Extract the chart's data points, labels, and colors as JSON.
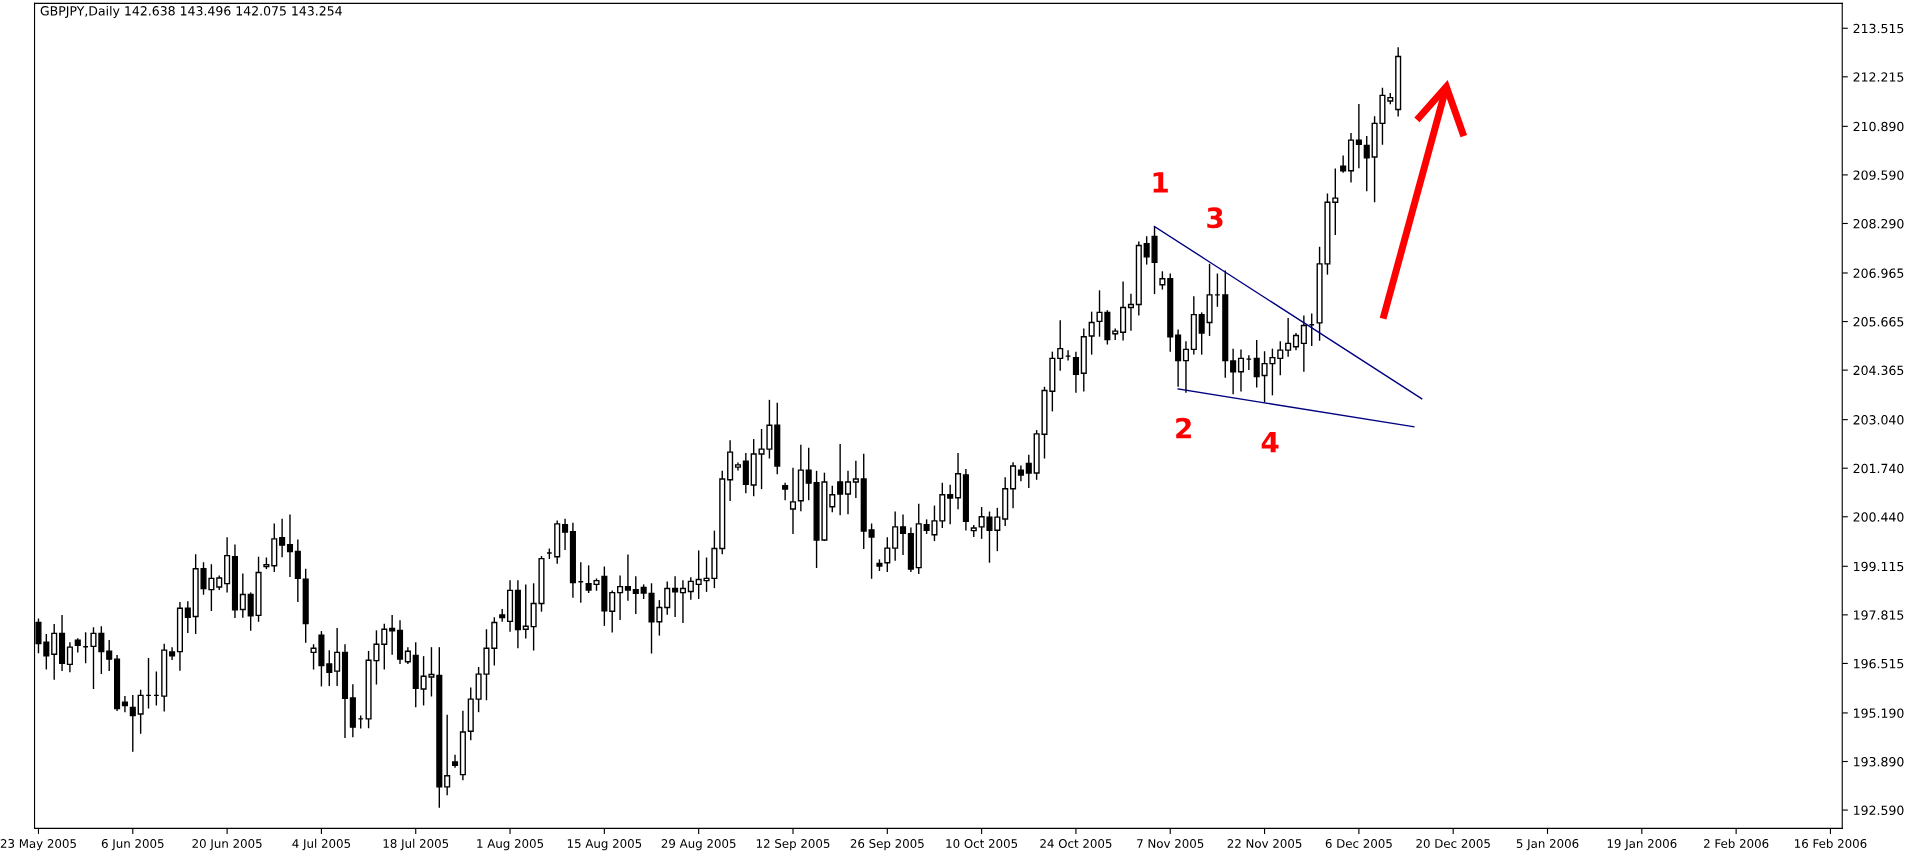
{
  "chart_data": {
    "type": "candlestick",
    "title": "GBPJPY,Daily 142.638 143.496 142.075 143.254",
    "categories": [
      "23 May 2005",
      null,
      null,
      null,
      null,
      null,
      null,
      null,
      null,
      null,
      null,
      null,
      "6 Jun 2005",
      null,
      null,
      null,
      null,
      null,
      null,
      null,
      null,
      null,
      null,
      null,
      "20 Jun 2005",
      null,
      null,
      null,
      null,
      null,
      null,
      null,
      null,
      null,
      null,
      null,
      "4 Jul 2005",
      null,
      null,
      null,
      null,
      null,
      null,
      null,
      null,
      null,
      null,
      null,
      "18 Jul 2005",
      null,
      null,
      null,
      null,
      null,
      null,
      null,
      null,
      null,
      null,
      null,
      "1 Aug 2005",
      null,
      null,
      null,
      null,
      null,
      null,
      null,
      null,
      null,
      null,
      null,
      "15 Aug 2005",
      null,
      null,
      null,
      null,
      null,
      null,
      null,
      null,
      null,
      null,
      null,
      "29 Aug 2005",
      null,
      null,
      null,
      null,
      null,
      null,
      null,
      null,
      null,
      null,
      null,
      "12 Sep 2005",
      null,
      null,
      null,
      null,
      null,
      null,
      null,
      null,
      null,
      null,
      null,
      "26 Sep 2005",
      null,
      null,
      null,
      null,
      null,
      null,
      null,
      null,
      null,
      null,
      null,
      "10 Oct 2005",
      null,
      null,
      null,
      null,
      null,
      null,
      null,
      null,
      null,
      null,
      null,
      "24 Oct 2005",
      null,
      null,
      null,
      null,
      null,
      null,
      null,
      null,
      null,
      null,
      null,
      "7 Nov 2005",
      null,
      null,
      null,
      null,
      null,
      null,
      null,
      null,
      null,
      null,
      null,
      "22 Nov 2005",
      null,
      null,
      null,
      null,
      null,
      null,
      null,
      null,
      null,
      null,
      null,
      "6 Dec 2005",
      null,
      null,
      null,
      null,
      null,
      null,
      null,
      null,
      null,
      null,
      null,
      "20 Dec 2005",
      null,
      null,
      null,
      null,
      null,
      null,
      null,
      null,
      null,
      null,
      null,
      "5 Jan 2006",
      null,
      null,
      null,
      null,
      null,
      null,
      null,
      null,
      null,
      null,
      null,
      "19 Jan 2006",
      null,
      null,
      null,
      null,
      null,
      null,
      null,
      null,
      null,
      null,
      null,
      "2 Feb 2006",
      null,
      null,
      null,
      null,
      null,
      null,
      null,
      null,
      null,
      null,
      null,
      "16 Feb 2006",
      null
    ],
    "ohlc": [
      [
        197.61,
        197.72,
        196.79,
        197.05
      ],
      [
        197.08,
        197.3,
        196.35,
        196.72
      ],
      [
        196.76,
        197.57,
        196.08,
        197.32
      ],
      [
        197.32,
        197.81,
        196.31,
        196.52
      ],
      [
        196.49,
        197.08,
        196.28,
        196.95
      ],
      [
        197.14,
        197.19,
        196.81,
        197.0
      ],
      [
        196.96,
        197.35,
        196.52,
        196.96
      ],
      [
        196.97,
        197.48,
        195.83,
        197.32
      ],
      [
        197.32,
        197.51,
        196.23,
        196.83
      ],
      [
        196.84,
        197.14,
        196.31,
        196.63
      ],
      [
        196.63,
        196.74,
        195.24,
        195.31
      ],
      [
        195.48,
        195.64,
        195.21,
        195.39
      ],
      [
        195.34,
        195.67,
        194.15,
        195.12
      ],
      [
        195.16,
        195.81,
        194.63,
        195.66
      ],
      [
        195.66,
        196.66,
        195.31,
        195.66
      ],
      [
        195.66,
        196.3,
        195.39,
        195.66
      ],
      [
        195.64,
        197.04,
        195.23,
        196.87
      ],
      [
        196.82,
        196.95,
        196.61,
        196.72
      ],
      [
        196.83,
        198.16,
        196.32,
        197.99
      ],
      [
        197.99,
        198.18,
        197.33,
        197.75
      ],
      [
        197.77,
        199.44,
        197.3,
        199.05
      ],
      [
        199.05,
        199.22,
        198.35,
        198.52
      ],
      [
        198.49,
        199.17,
        197.92,
        198.79
      ],
      [
        198.56,
        198.87,
        198.48,
        198.8
      ],
      [
        198.65,
        199.89,
        198.41,
        199.4
      ],
      [
        199.37,
        199.7,
        197.73,
        197.95
      ],
      [
        197.96,
        198.92,
        197.74,
        198.36
      ],
      [
        198.36,
        198.41,
        197.39,
        197.79
      ],
      [
        197.8,
        199.37,
        197.63,
        198.95
      ],
      [
        199.11,
        199.35,
        199.04,
        199.16
      ],
      [
        199.13,
        200.26,
        198.96,
        199.85
      ],
      [
        199.88,
        200.39,
        199.36,
        199.68
      ],
      [
        199.69,
        200.5,
        198.83,
        199.51
      ],
      [
        199.51,
        199.83,
        198.16,
        198.79
      ],
      [
        198.77,
        199.05,
        197.07,
        197.58
      ],
      [
        196.81,
        197.03,
        196.35,
        196.92
      ],
      [
        197.27,
        197.38,
        195.9,
        196.46
      ],
      [
        196.5,
        196.87,
        195.91,
        196.28
      ],
      [
        196.31,
        197.46,
        195.91,
        196.81
      ],
      [
        196.81,
        197.03,
        194.52,
        195.58
      ],
      [
        195.59,
        195.96,
        194.54,
        194.81
      ],
      [
        195.03,
        195.12,
        194.77,
        195.03
      ],
      [
        195.03,
        196.85,
        194.78,
        196.6
      ],
      [
        196.59,
        197.4,
        195.95,
        197.03
      ],
      [
        197.03,
        197.58,
        196.35,
        197.43
      ],
      [
        197.45,
        197.81,
        196.75,
        197.39
      ],
      [
        197.4,
        197.67,
        196.5,
        196.63
      ],
      [
        196.56,
        196.95,
        196.5,
        196.84
      ],
      [
        196.73,
        197.08,
        195.34,
        195.85
      ],
      [
        195.83,
        196.71,
        195.39,
        196.17
      ],
      [
        196.15,
        196.95,
        195.63,
        196.22
      ],
      [
        196.19,
        196.95,
        192.65,
        193.21
      ],
      [
        193.21,
        195.14,
        192.99,
        193.51
      ],
      [
        193.88,
        194.07,
        193.72,
        193.79
      ],
      [
        193.54,
        195.25,
        193.39,
        194.68
      ],
      [
        194.7,
        195.87,
        194.46,
        195.56
      ],
      [
        195.56,
        196.42,
        195.21,
        196.23
      ],
      [
        196.23,
        197.43,
        195.53,
        196.92
      ],
      [
        196.92,
        197.75,
        196.46,
        197.61
      ],
      [
        197.81,
        197.97,
        197.63,
        197.74
      ],
      [
        197.64,
        198.74,
        197.36,
        198.47
      ],
      [
        198.47,
        198.74,
        196.92,
        197.42
      ],
      [
        197.43,
        198.63,
        197.18,
        197.51
      ],
      [
        197.5,
        198.66,
        196.86,
        198.12
      ],
      [
        198.12,
        199.39,
        197.9,
        199.32
      ],
      [
        199.47,
        199.59,
        199.31,
        199.47
      ],
      [
        199.37,
        200.34,
        199.18,
        200.25
      ],
      [
        200.23,
        200.39,
        199.55,
        200.03
      ],
      [
        200.04,
        200.28,
        198.27,
        198.68
      ],
      [
        198.7,
        199.22,
        198.14,
        198.7
      ],
      [
        198.65,
        199.14,
        198.4,
        198.48
      ],
      [
        198.63,
        198.79,
        198.46,
        198.73
      ],
      [
        198.84,
        199.11,
        197.52,
        197.92
      ],
      [
        197.91,
        198.47,
        197.34,
        198.41
      ],
      [
        198.41,
        198.87,
        197.68,
        198.57
      ],
      [
        198.57,
        199.43,
        198.19,
        198.48
      ],
      [
        198.49,
        198.85,
        197.84,
        198.39
      ],
      [
        198.55,
        198.63,
        198.24,
        198.4
      ],
      [
        198.39,
        198.66,
        196.78,
        197.63
      ],
      [
        197.63,
        198.21,
        197.26,
        198.01
      ],
      [
        198.01,
        198.71,
        197.82,
        198.52
      ],
      [
        198.52,
        198.85,
        197.76,
        198.43
      ],
      [
        198.41,
        198.74,
        197.6,
        198.52
      ],
      [
        198.44,
        198.82,
        198.22,
        198.71
      ],
      [
        198.63,
        199.54,
        198.24,
        198.76
      ],
      [
        198.73,
        199.35,
        198.43,
        198.79
      ],
      [
        198.79,
        200.07,
        198.53,
        199.59
      ],
      [
        199.59,
        201.67,
        199.44,
        201.45
      ],
      [
        201.43,
        202.49,
        200.86,
        202.17
      ],
      [
        201.77,
        201.89,
        201.68,
        201.83
      ],
      [
        201.93,
        202.15,
        201.07,
        201.31
      ],
      [
        201.29,
        202.52,
        200.99,
        202.12
      ],
      [
        202.12,
        202.79,
        201.18,
        202.25
      ],
      [
        202.25,
        203.57,
        202.0,
        202.89
      ],
      [
        202.89,
        203.49,
        201.58,
        201.8
      ],
      [
        201.27,
        201.35,
        200.88,
        201.18
      ],
      [
        200.65,
        201.75,
        199.98,
        200.84
      ],
      [
        200.87,
        202.37,
        200.59,
        201.69
      ],
      [
        201.69,
        202.29,
        200.88,
        201.34
      ],
      [
        201.35,
        201.67,
        199.07,
        199.82
      ],
      [
        199.82,
        201.62,
        199.79,
        201.37
      ],
      [
        200.71,
        201.27,
        200.56,
        201.03
      ],
      [
        201.37,
        202.39,
        200.48,
        201.05
      ],
      [
        201.05,
        201.67,
        200.51,
        201.37
      ],
      [
        201.37,
        201.94,
        200.94,
        201.45
      ],
      [
        201.45,
        202.13,
        199.58,
        200.06
      ],
      [
        200.09,
        200.26,
        198.78,
        199.9
      ],
      [
        199.19,
        199.3,
        198.99,
        199.12
      ],
      [
        199.21,
        199.89,
        198.96,
        199.6
      ],
      [
        199.6,
        200.58,
        199.26,
        200.17
      ],
      [
        200.17,
        200.5,
        199.42,
        200.0
      ],
      [
        199.99,
        200.15,
        198.96,
        199.04
      ],
      [
        199.08,
        200.79,
        198.91,
        200.25
      ],
      [
        200.23,
        200.37,
        199.98,
        200.08
      ],
      [
        199.96,
        200.74,
        199.79,
        200.33
      ],
      [
        200.33,
        201.35,
        200.14,
        201.03
      ],
      [
        201.03,
        201.3,
        200.24,
        200.94
      ],
      [
        200.95,
        202.15,
        200.64,
        201.59
      ],
      [
        201.56,
        201.72,
        200.07,
        200.32
      ],
      [
        200.07,
        200.22,
        199.9,
        200.14
      ],
      [
        200.17,
        200.7,
        199.85,
        200.44
      ],
      [
        200.43,
        200.58,
        199.21,
        200.08
      ],
      [
        200.08,
        200.68,
        199.52,
        200.43
      ],
      [
        200.38,
        201.5,
        200.19,
        201.19
      ],
      [
        201.19,
        201.9,
        200.67,
        201.8
      ],
      [
        201.69,
        201.81,
        201.39,
        201.56
      ],
      [
        201.87,
        202.1,
        201.21,
        201.61
      ],
      [
        201.61,
        202.76,
        201.43,
        202.66
      ],
      [
        202.65,
        203.92,
        202.0,
        203.82
      ],
      [
        203.8,
        204.86,
        203.26,
        204.68
      ],
      [
        204.68,
        205.7,
        204.35,
        204.94
      ],
      [
        204.74,
        204.9,
        204.62,
        204.74
      ],
      [
        204.7,
        204.86,
        203.76,
        204.25
      ],
      [
        204.28,
        205.48,
        203.79,
        205.26
      ],
      [
        205.28,
        205.93,
        204.78,
        205.64
      ],
      [
        205.67,
        206.5,
        205.26,
        205.91
      ],
      [
        205.91,
        205.97,
        205.05,
        205.18
      ],
      [
        205.34,
        205.48,
        205.17,
        205.41
      ],
      [
        205.38,
        206.74,
        205.16,
        206.04
      ],
      [
        206.04,
        206.41,
        205.42,
        206.12
      ],
      [
        206.12,
        207.81,
        205.83,
        207.7
      ],
      [
        207.75,
        207.95,
        207.19,
        207.4
      ],
      [
        207.94,
        208.21,
        206.4,
        207.25
      ],
      [
        206.65,
        207.01,
        206.52,
        206.81
      ],
      [
        206.81,
        206.95,
        204.86,
        205.26
      ],
      [
        205.3,
        205.45,
        203.92,
        204.62
      ],
      [
        204.62,
        205.14,
        203.76,
        204.92
      ],
      [
        204.92,
        206.34,
        204.78,
        205.85
      ],
      [
        205.85,
        205.91,
        204.78,
        205.36
      ],
      [
        205.64,
        207.21,
        205.28,
        206.38
      ],
      [
        206.38,
        206.95,
        206.06,
        206.38
      ],
      [
        206.38,
        207.03,
        204.16,
        204.62
      ],
      [
        204.61,
        204.94,
        203.72,
        204.32
      ],
      [
        204.32,
        204.92,
        203.79,
        204.68
      ],
      [
        204.66,
        204.76,
        204.37,
        204.66
      ],
      [
        204.68,
        205.17,
        203.9,
        204.19
      ],
      [
        204.22,
        204.87,
        203.5,
        204.54
      ],
      [
        204.54,
        204.94,
        203.69,
        204.7
      ],
      [
        204.68,
        205.14,
        204.23,
        204.9
      ],
      [
        204.9,
        205.76,
        204.72,
        205.08
      ],
      [
        204.99,
        205.36,
        204.9,
        205.29
      ],
      [
        205.08,
        205.83,
        204.32,
        205.56
      ],
      [
        205.58,
        205.88,
        205.01,
        205.58
      ],
      [
        205.63,
        207.67,
        205.15,
        207.21
      ],
      [
        207.21,
        209.09,
        206.92,
        208.86
      ],
      [
        208.86,
        209.76,
        207.98,
        208.97
      ],
      [
        209.82,
        210.11,
        209.65,
        209.7
      ],
      [
        209.7,
        210.71,
        209.39,
        210.52
      ],
      [
        210.52,
        211.49,
        209.77,
        210.41
      ],
      [
        210.38,
        210.63,
        209.15,
        210.05
      ],
      [
        210.07,
        211.16,
        208.86,
        210.97
      ],
      [
        210.97,
        211.92,
        210.4,
        211.72
      ],
      [
        211.57,
        211.78,
        211.48,
        211.66
      ],
      [
        211.34,
        213.01,
        211.15,
        212.76
      ],
      null,
      null,
      null,
      null,
      null,
      null,
      null,
      null,
      null,
      null,
      null,
      null,
      null,
      null,
      null,
      null,
      null,
      null,
      null,
      null,
      null,
      null,
      null,
      null,
      null,
      null,
      null,
      null,
      null,
      null,
      null,
      null,
      null,
      null,
      null,
      null,
      null,
      null,
      null,
      null,
      null,
      null,
      null,
      null,
      null,
      null,
      null,
      null,
      null,
      null,
      null,
      null,
      null,
      null,
      null,
      null
    ],
    "series": [
      {
        "type": "line",
        "color": "#000080",
        "values": [
          null,
          null,
          null,
          null,
          null,
          null,
          null,
          null,
          null,
          null,
          null,
          null,
          null,
          null,
          null,
          null,
          null,
          null,
          null,
          null,
          null,
          null,
          null,
          null,
          null,
          null,
          null,
          null,
          null,
          null,
          null,
          null,
          null,
          null,
          null,
          null,
          null,
          null,
          null,
          null,
          null,
          null,
          null,
          null,
          null,
          null,
          null,
          null,
          null,
          null,
          null,
          null,
          null,
          null,
          null,
          null,
          null,
          null,
          null,
          null,
          null,
          null,
          null,
          null,
          null,
          null,
          null,
          null,
          null,
          null,
          null,
          null,
          null,
          null,
          null,
          null,
          null,
          null,
          null,
          null,
          null,
          null,
          null,
          null,
          null,
          null,
          null,
          null,
          null,
          null,
          null,
          null,
          null,
          null,
          null,
          null,
          null,
          null,
          null,
          null,
          null,
          null,
          null,
          null,
          null,
          null,
          null,
          null,
          null,
          null,
          null,
          null,
          null,
          null,
          null,
          null,
          null,
          null,
          null,
          null,
          null,
          null,
          null,
          null,
          null,
          null,
          null,
          null,
          null,
          null,
          null,
          null,
          null,
          null,
          null,
          null,
          null,
          null,
          null,
          null,
          null,
          null,
          208.21,
          null,
          null,
          null,
          null,
          null,
          null,
          207.26,
          null,
          null,
          null,
          null,
          null,
          null,
          null,
          null,
          null,
          null,
          null,
          null,
          null,
          null,
          null,
          null,
          null,
          null,
          null,
          null,
          null,
          null,
          null,
          null,
          null,
          null,
          203.6,
          null,
          null,
          null,
          null,
          null,
          null,
          null,
          null,
          null,
          null,
          null,
          null,
          null,
          null,
          null,
          null,
          null,
          null,
          null,
          null,
          null,
          null,
          null,
          null,
          null,
          null,
          null,
          null,
          null,
          null,
          null,
          null,
          null,
          null,
          null,
          null,
          null,
          null,
          null,
          null,
          null,
          null,
          null,
          null,
          null,
          null,
          null,
          null,
          null,
          null,
          null,
          null,
          null
        ]
      },
      {
        "type": "line",
        "color": "#000080",
        "values": [
          null,
          null,
          null,
          null,
          null,
          null,
          null,
          null,
          null,
          null,
          null,
          null,
          null,
          null,
          null,
          null,
          null,
          null,
          null,
          null,
          null,
          null,
          null,
          null,
          null,
          null,
          null,
          null,
          null,
          null,
          null,
          null,
          null,
          null,
          null,
          null,
          null,
          null,
          null,
          null,
          null,
          null,
          null,
          null,
          null,
          null,
          null,
          null,
          null,
          null,
          null,
          null,
          null,
          null,
          null,
          null,
          null,
          null,
          null,
          null,
          null,
          null,
          null,
          null,
          null,
          null,
          null,
          null,
          null,
          null,
          null,
          null,
          null,
          null,
          null,
          null,
          null,
          null,
          null,
          null,
          null,
          null,
          null,
          null,
          null,
          null,
          null,
          null,
          null,
          null,
          null,
          null,
          null,
          null,
          null,
          null,
          null,
          null,
          null,
          null,
          null,
          null,
          null,
          null,
          null,
          null,
          null,
          null,
          null,
          null,
          null,
          null,
          null,
          null,
          null,
          null,
          null,
          null,
          null,
          null,
          null,
          null,
          null,
          null,
          null,
          null,
          null,
          null,
          null,
          null,
          null,
          null,
          null,
          null,
          null,
          null,
          null,
          null,
          null,
          null,
          null,
          null,
          null,
          null,
          null,
          203.86,
          null,
          null,
          null,
          null,
          null,
          null,
          null,
          null,
          null,
          null,
          203.49,
          null,
          null,
          null,
          null,
          null,
          null,
          null,
          null,
          null,
          null,
          null,
          null,
          null,
          null,
          null,
          null,
          null,
          null,
          202.85,
          null,
          null,
          null,
          null,
          null,
          null,
          null,
          null,
          null,
          null,
          null,
          null,
          null,
          null,
          null,
          null,
          null,
          null,
          null,
          null,
          null,
          null,
          null,
          null,
          null,
          null,
          null,
          null,
          null,
          null,
          null,
          null,
          null,
          null,
          null,
          null,
          null,
          null,
          null,
          null,
          null,
          null,
          null,
          null,
          null,
          null,
          null,
          null,
          null,
          null,
          null,
          null,
          null,
          null
        ]
      }
    ],
    "annotations": [
      "1",
      "2",
      "3",
      "4"
    ],
    "ylim": [
      192.1,
      214.18
    ],
    "yticks": [
      213.515,
      212.215,
      {
        "value": 210.89,
        "label": "210.890"
      },
      {
        "value": 209.59,
        "label": "209.590"
      },
      {
        "value": 208.29,
        "label": "208.290"
      },
      206.965,
      205.665,
      204.365,
      {
        "value": 203.04,
        "label": "203.040"
      },
      {
        "value": 201.74,
        "label": "201.740"
      },
      {
        "value": 200.44,
        "label": "200.440"
      },
      199.115,
      197.815,
      196.515,
      {
        "value": 195.19,
        "label": "195.190"
      },
      {
        "value": 193.89,
        "label": "193.890"
      },
      {
        "value": 192.59,
        "label": "192.590"
      }
    ]
  }
}
